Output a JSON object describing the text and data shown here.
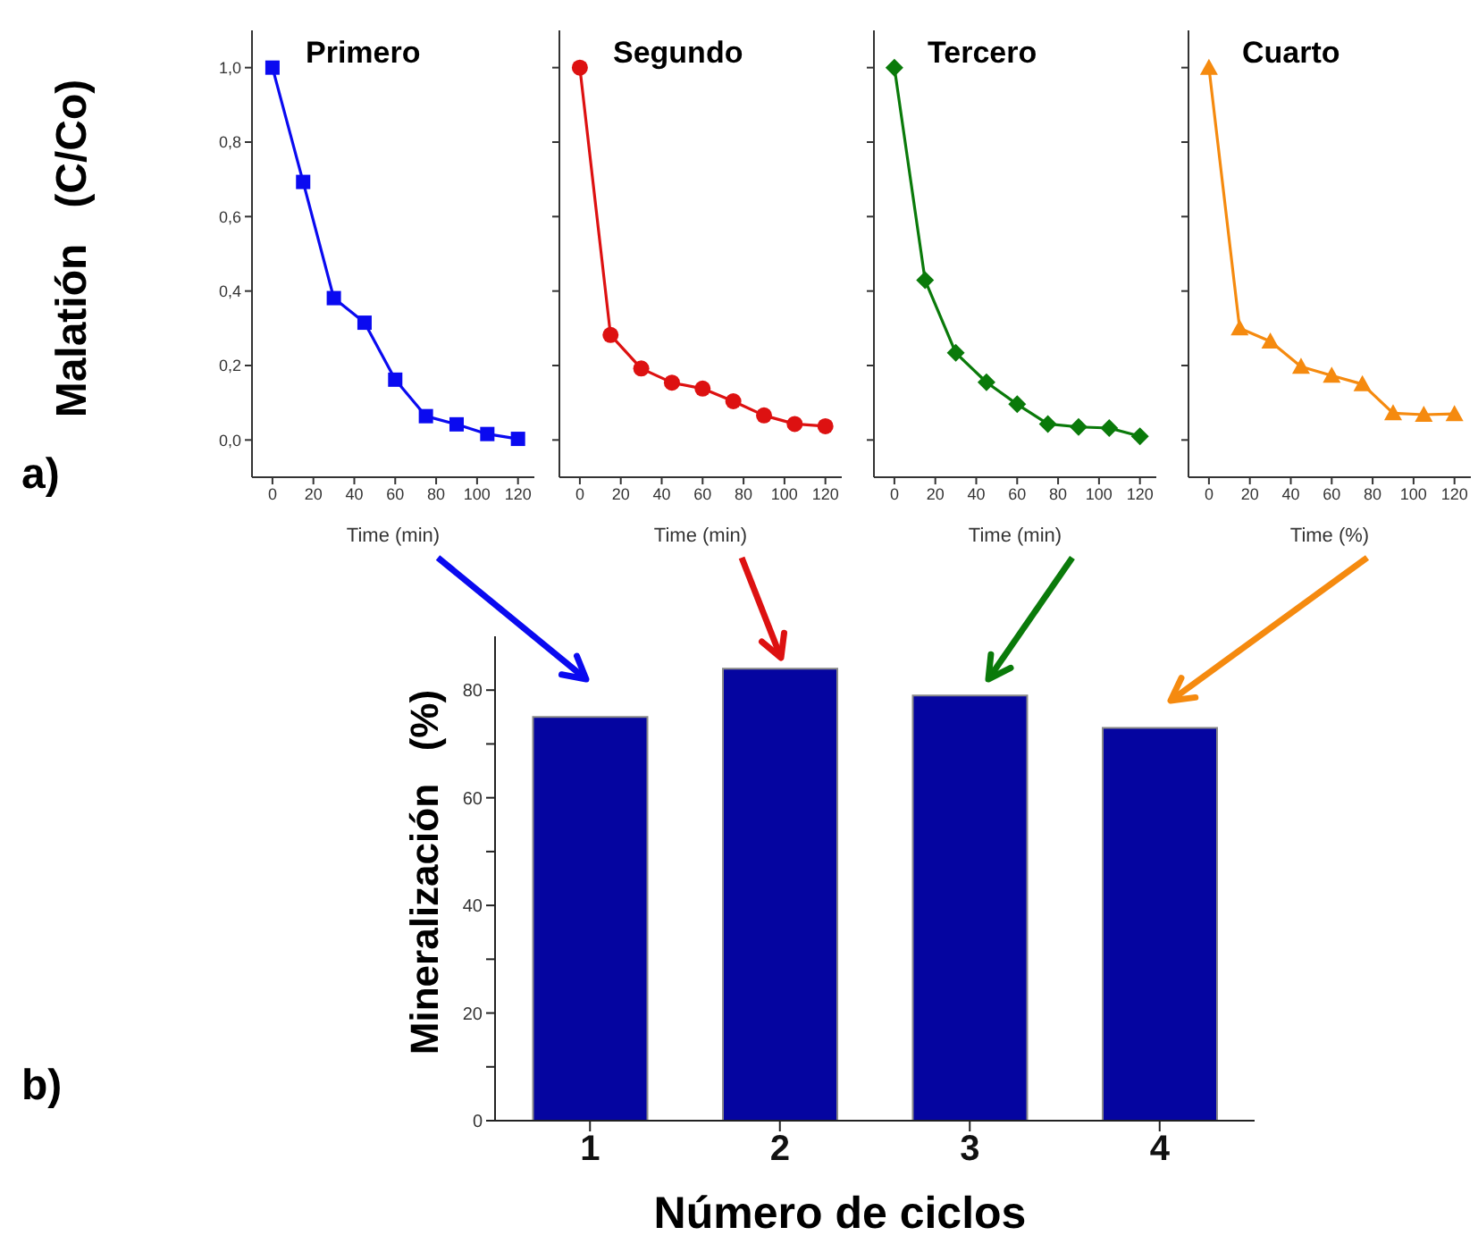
{
  "chart_data": [
    {
      "type": "line",
      "title": "Primero",
      "xlabel": "Time (min)",
      "ylabel": "Malatión   (C/Co)",
      "annotations": [
        "a)"
      ],
      "x": [
        0,
        15,
        30,
        45,
        60,
        75,
        90,
        105,
        120
      ],
      "series": [
        {
          "color": "#0a0af0",
          "values": [
            1.0,
            0.693,
            0.381,
            0.315,
            0.162,
            0.064,
            0.042,
            0.016,
            0.003
          ]
        }
      ],
      "marker": "square",
      "xlim": [
        -10,
        128
      ],
      "xticks": [
        0,
        20,
        40,
        60,
        80,
        100,
        120
      ],
      "ylim": [
        -0.1,
        1.1
      ],
      "yticks": [
        {
          "value": 0,
          "label": "0,0"
        },
        {
          "value": 0.2,
          "label": "0,2"
        },
        {
          "value": 0.4,
          "label": "0,4"
        },
        {
          "value": 0.6,
          "label": "0,6"
        },
        {
          "value": 0.8,
          "label": "0,8"
        },
        {
          "value": 1.0,
          "label": "1,0"
        }
      ]
    },
    {
      "type": "line",
      "title": "Segundo",
      "xlabel": "Time (min)",
      "x": [
        0,
        15,
        30,
        45,
        60,
        75,
        90,
        105,
        120
      ],
      "series": [
        {
          "color": "#dd1111",
          "values": [
            1.0,
            0.282,
            0.192,
            0.154,
            0.138,
            0.104,
            0.066,
            0.043,
            0.037
          ]
        }
      ],
      "marker": "circle",
      "xlim": [
        -10,
        128
      ],
      "xticks": [
        0,
        20,
        40,
        60,
        80,
        100,
        120
      ],
      "ylim": [
        -0.1,
        1.1
      ],
      "yticks": [
        0,
        0.2,
        0.4,
        0.6,
        0.8,
        1.0
      ],
      "tick_labels": "x"
    },
    {
      "type": "line",
      "title": "Tercero",
      "xlabel": "Time (min)",
      "x": [
        0,
        15,
        30,
        45,
        60,
        75,
        90,
        105,
        120
      ],
      "series": [
        {
          "color": "#0a7a0a",
          "values": [
            1.0,
            0.429,
            0.234,
            0.155,
            0.096,
            0.043,
            0.035,
            0.032,
            0.01
          ]
        }
      ],
      "marker": "diamond",
      "xlim": [
        -10,
        128
      ],
      "xticks": [
        0,
        20,
        40,
        60,
        80,
        100,
        120
      ],
      "ylim": [
        -0.1,
        1.1
      ],
      "yticks": [
        0,
        0.2,
        0.4,
        0.6,
        0.8,
        1.0
      ],
      "tick_labels": "x"
    },
    {
      "type": "line",
      "title": "Cuarto",
      "xlabel": "Time (%)",
      "x": [
        0,
        15,
        30,
        45,
        60,
        75,
        90,
        105,
        120
      ],
      "series": [
        {
          "color": "#f58a0f",
          "values": [
            1.0,
            0.3,
            0.265,
            0.197,
            0.173,
            0.15,
            0.072,
            0.068,
            0.07
          ]
        }
      ],
      "marker": "triangle",
      "xlim": [
        -10,
        128
      ],
      "xticks": [
        0,
        20,
        40,
        60,
        80,
        100,
        120
      ],
      "ylim": [
        -0.1,
        1.1
      ],
      "yticks": [
        0,
        0.2,
        0.4,
        0.6,
        0.8,
        1.0
      ],
      "tick_labels": "x"
    },
    {
      "type": "bar",
      "xlabel": "Número de ciclos",
      "ylabel": "Mineralización   (%)",
      "annotations": [
        "b)"
      ],
      "categories": [
        "1",
        "2",
        "3",
        "4"
      ],
      "values": [
        75,
        84,
        79,
        73
      ],
      "color": "#0505a0",
      "ylim": [
        0,
        90
      ],
      "yticks": [
        0,
        {
          "value": 10,
          "label": null
        },
        20,
        {
          "value": 30,
          "label": null
        },
        40,
        {
          "value": 50,
          "label": null
        },
        60,
        {
          "value": 70,
          "label": null
        },
        80
      ]
    }
  ]
}
